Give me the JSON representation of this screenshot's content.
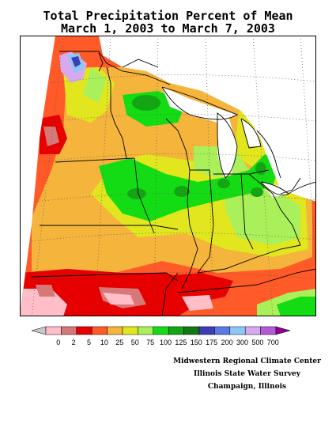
{
  "title": {
    "line1": "Total Precipitation Percent of Mean",
    "line2": "March 1, 2003 to March 7, 2003"
  },
  "legend": {
    "below_min_color": "#c8c8c8",
    "above_max_color": "#8c0096",
    "labels": [
      "0",
      "2",
      "5",
      "10",
      "25",
      "50",
      "75",
      "100",
      "125",
      "150",
      "175",
      "200",
      "300",
      "500",
      "700"
    ],
    "colors": [
      "#ffbec8",
      "#d77878",
      "#e60000",
      "#ff5a28",
      "#f5b43c",
      "#e1e61e",
      "#aaf05a",
      "#14dc14",
      "#14a514",
      "#147814",
      "#3c3cb4",
      "#5a78e6",
      "#8cc8f5",
      "#d7aaf0",
      "#b45ad7"
    ]
  },
  "credits": {
    "line1": "Midwestern Regional Climate Center",
    "line2": "Illinois State Water Survey",
    "line3": "Champaign, Illinois"
  },
  "map": {
    "region": "Midwestern United States",
    "water_color": "#ffffff",
    "boundary_color": "#000000"
  }
}
